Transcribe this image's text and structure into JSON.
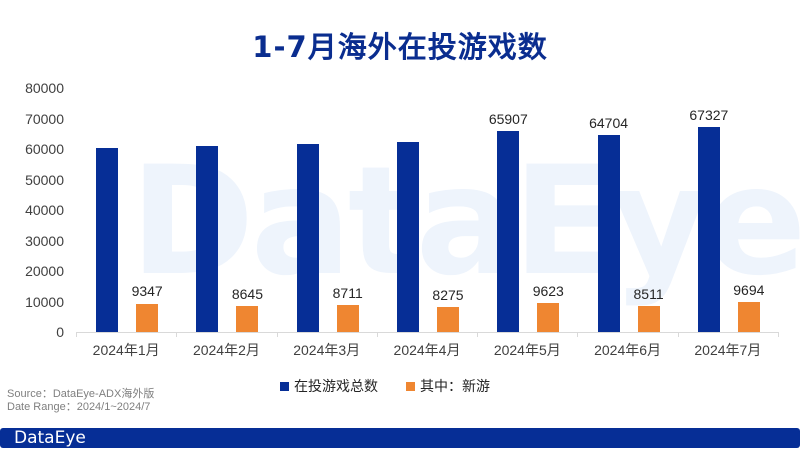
{
  "title": "1-7月海外在投游戏数",
  "watermark": "DataEye",
  "colors": {
    "total": "#062e96",
    "new": "#ef8631",
    "title": "#0a2d8f"
  },
  "legend": [
    {
      "label": "在投游戏总数",
      "color": "#062e96"
    },
    {
      "label": "其中：新游",
      "color": "#ef8631"
    }
  ],
  "source": {
    "line1": "Source：DataEye-ADX海外版",
    "line2": "Date Range：2024/1~2024/7"
  },
  "footer": {
    "logo": "DataEye"
  },
  "y_ticks": [
    "0",
    "10000",
    "20000",
    "30000",
    "40000",
    "50000",
    "60000",
    "70000",
    "80000"
  ],
  "chart_data": {
    "type": "bar",
    "title": "1-7月海外在投游戏数",
    "xlabel": "",
    "ylabel": "",
    "ylim": [
      0,
      80000
    ],
    "grid": false,
    "legend_position": "bottom",
    "categories": [
      "2024年1月",
      "2024年2月",
      "2024年3月",
      "2024年4月",
      "2024年5月",
      "2024年6月",
      "2024年7月"
    ],
    "series": [
      {
        "name": "在投游戏总数",
        "values": [
          60300,
          61000,
          61600,
          62200,
          65907,
          64704,
          67327
        ],
        "labels": [
          "",
          "",
          "",
          "",
          "65907",
          "64704",
          "67327"
        ]
      },
      {
        "name": "其中：新游",
        "values": [
          9347,
          8645,
          8711,
          8275,
          9623,
          8511,
          9694
        ],
        "labels": [
          "9347",
          "8645",
          "8711",
          "8275",
          "9623",
          "8511",
          "9694"
        ]
      }
    ]
  }
}
